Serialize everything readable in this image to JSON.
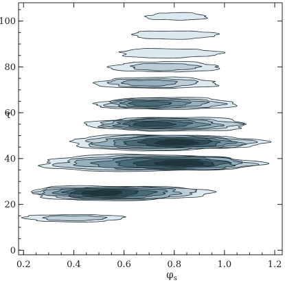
{
  "chart_data": {
    "type": "contour",
    "xlabel": "φs",
    "xlabel_main": "φ",
    "xlabel_sub": "s",
    "ylabel": "τ",
    "xlim": [
      0.18,
      1.23
    ],
    "ylim": [
      -2,
      108
    ],
    "x_ticks": [
      0.2,
      0.4,
      0.6,
      0.8,
      1.0,
      1.2
    ],
    "x_tick_labels": [
      "0.2",
      "0.4",
      "0.6",
      "0.8",
      "1.0",
      "1.2"
    ],
    "y_ticks": [
      0,
      20,
      40,
      60,
      80,
      100
    ],
    "y_tick_labels": [
      "0",
      "20",
      "40",
      "60",
      "80",
      "100"
    ],
    "grid": false,
    "levels": [
      {
        "level": 1,
        "color": "#dde8ef"
      },
      {
        "level": 2,
        "color": "#bccdd7"
      },
      {
        "level": 3,
        "color": "#96b0bd"
      },
      {
        "level": 4,
        "color": "#6f8f9c"
      },
      {
        "level": 5,
        "color": "#4a6c78"
      },
      {
        "level": 6,
        "color": "#2f4c56"
      },
      {
        "level": 7,
        "color": "#1e363e"
      }
    ],
    "bands": [
      {
        "tau": 14,
        "x_center": 0.4,
        "x_half_width": 0.2,
        "tau_half_height": 1.6,
        "peak_level": 2
      },
      {
        "tau": 25,
        "x_center": 0.58,
        "x_half_width": 0.36,
        "tau_half_height": 3.2,
        "peak_level": 7,
        "peak_x": 0.5
      },
      {
        "tau": 38,
        "x_center": 0.7,
        "x_half_width": 0.44,
        "tau_half_height": 3.6,
        "peak_level": 7,
        "peak_x": 0.85
      },
      {
        "tau": 47,
        "x_center": 0.76,
        "x_half_width": 0.38,
        "tau_half_height": 3.4,
        "peak_level": 7,
        "peak_x": 0.82
      },
      {
        "tau": 55,
        "x_center": 0.78,
        "x_half_width": 0.32,
        "tau_half_height": 3.0,
        "peak_level": 6,
        "peak_x": 0.7
      },
      {
        "tau": 64,
        "x_center": 0.77,
        "x_half_width": 0.28,
        "tau_half_height": 2.6,
        "peak_level": 5,
        "peak_x": 0.68
      },
      {
        "tau": 73,
        "x_center": 0.73,
        "x_half_width": 0.24,
        "tau_half_height": 2.4,
        "peak_level": 3,
        "peak_x": 0.68
      },
      {
        "tau": 80,
        "x_center": 0.76,
        "x_half_width": 0.22,
        "tau_half_height": 2.2,
        "peak_level": 2
      },
      {
        "tau": 86,
        "x_center": 0.78,
        "x_half_width": 0.2,
        "tau_half_height": 2.0,
        "peak_level": 1
      },
      {
        "tau": 94,
        "x_center": 0.8,
        "x_half_width": 0.17,
        "tau_half_height": 1.8,
        "peak_level": 1
      },
      {
        "tau": 102,
        "x_center": 0.81,
        "x_half_width": 0.12,
        "tau_half_height": 1.6,
        "peak_level": 1
      }
    ]
  }
}
